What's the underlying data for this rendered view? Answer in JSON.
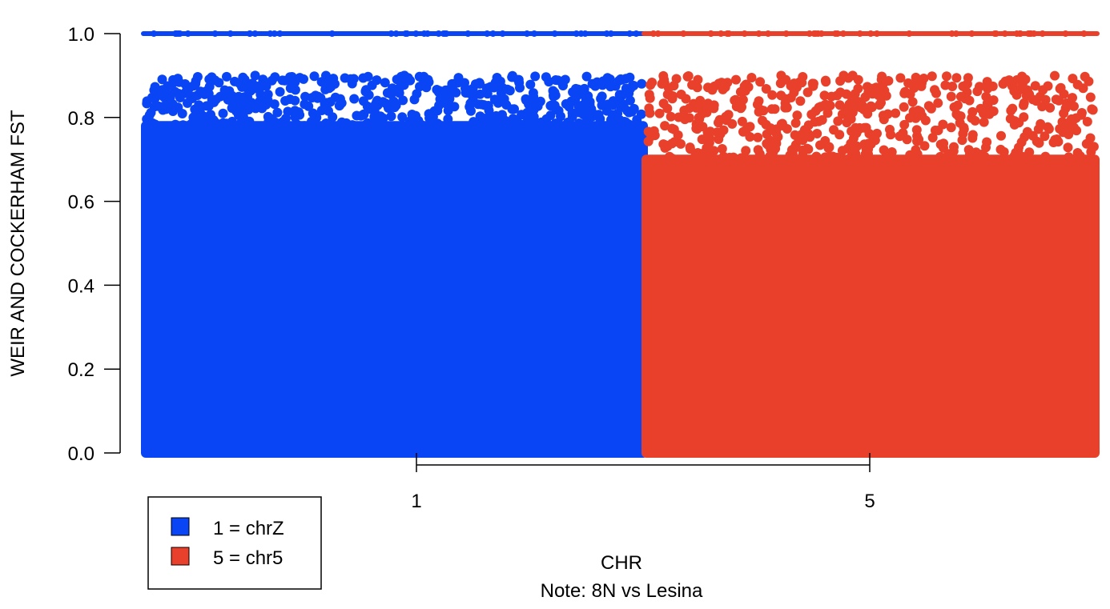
{
  "chart_data": {
    "type": "scatter",
    "title": "",
    "xlabel": "CHR",
    "ylabel": "WEIR AND COCKERHAM FST",
    "note": "Note: 8N vs Lesina",
    "ylim": [
      0.0,
      1.0
    ],
    "yticks": [
      "0.0",
      "0.2",
      "0.4",
      "0.6",
      "0.8",
      "1.0"
    ],
    "xticks": [
      "1",
      "5"
    ],
    "grid": false,
    "legend_position": "bottom-left",
    "legend": [
      {
        "label": "1 = chrZ",
        "color": "#0a45f5"
      },
      {
        "label": "5 = chr5",
        "color": "#e8402a"
      }
    ],
    "series": [
      {
        "name": "1 = chrZ",
        "chromosome": "1",
        "color": "#0a45f5",
        "fst_dense_range": [
          0.0,
          0.78
        ],
        "fst_sparse_range": [
          0.78,
          0.9
        ],
        "fst_top_band": 1.0,
        "sample_points": [
          {
            "x": 0.1,
            "y": 0.88
          },
          {
            "x": 0.15,
            "y": 0.85
          },
          {
            "x": 0.22,
            "y": 0.9
          },
          {
            "x": 0.3,
            "y": 0.84
          },
          {
            "x": 0.38,
            "y": 0.88
          },
          {
            "x": 0.45,
            "y": 0.82
          },
          {
            "x": 0.52,
            "y": 0.9
          },
          {
            "x": 0.6,
            "y": 0.86
          },
          {
            "x": 0.68,
            "y": 0.83
          },
          {
            "x": 0.75,
            "y": 0.89
          },
          {
            "x": 0.82,
            "y": 0.85
          },
          {
            "x": 0.9,
            "y": 0.88
          }
        ]
      },
      {
        "name": "5 = chr5",
        "chromosome": "5",
        "color": "#e8402a",
        "fst_dense_range": [
          0.0,
          0.7
        ],
        "fst_sparse_range": [
          0.7,
          0.9
        ],
        "fst_top_band": 1.0,
        "sample_points": [
          {
            "x": 0.05,
            "y": 0.87
          },
          {
            "x": 0.12,
            "y": 0.84
          },
          {
            "x": 0.2,
            "y": 0.89
          },
          {
            "x": 0.28,
            "y": 0.82
          },
          {
            "x": 0.36,
            "y": 0.86
          },
          {
            "x": 0.44,
            "y": 0.9
          },
          {
            "x": 0.52,
            "y": 0.83
          },
          {
            "x": 0.6,
            "y": 0.88
          },
          {
            "x": 0.68,
            "y": 0.85
          },
          {
            "x": 0.76,
            "y": 0.81
          },
          {
            "x": 0.84,
            "y": 0.89
          },
          {
            "x": 0.92,
            "y": 0.84
          }
        ]
      }
    ]
  }
}
